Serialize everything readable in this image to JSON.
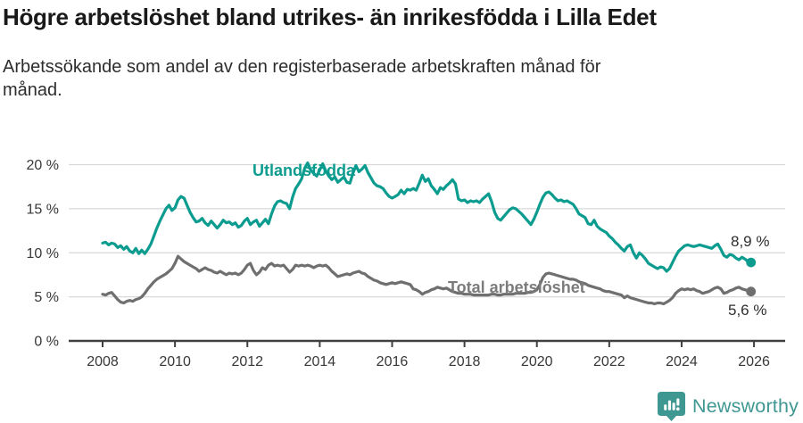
{
  "header": {
    "title": "Högre arbetslöshet bland utrikes- än inrikesfödda i Lilla Edet",
    "subtitle": "Arbetssökande som andel av den registerbaserade arbetskraften månad för månad."
  },
  "footer": {
    "brand": "Newsworthy"
  },
  "colors": {
    "utlandsfodda_line": "#0c9c8f",
    "total_line": "#6f6f6f",
    "grid": "#d9d9d9",
    "axis": "#404040",
    "tick_text": "#383838",
    "brand_teal": "#3f9792"
  },
  "chart_data": {
    "type": "line",
    "title": "Högre arbetslöshet bland utrikes- än inrikesfödda i Lilla Edet",
    "subtitle": "Arbetssökande som andel av den registerbaserade arbetskraften månad för månad.",
    "grid": "horizontal",
    "legend_position": "inline-labels",
    "x_axis": {
      "unit": "year-monthly",
      "start_year": 2008,
      "tick_years": [
        2008,
        2010,
        2012,
        2014,
        2016,
        2018,
        2020,
        2022,
        2024,
        2026
      ],
      "range": [
        2007.1,
        2026.9
      ]
    },
    "y_axis": {
      "ticks": [
        0,
        5,
        10,
        15,
        20
      ],
      "tick_suffix": " %",
      "range": [
        0,
        21
      ]
    },
    "series": [
      {
        "name": "Utlandsfödda",
        "key": "utlandsfodda",
        "color": "#0c9c8f",
        "end_label": "8,9 %",
        "last_value": 8.9,
        "start_year": 2008,
        "points_per_year": 12,
        "values": [
          11.1,
          11.2,
          10.9,
          11.1,
          11.0,
          10.6,
          10.8,
          10.4,
          10.7,
          10.2,
          10.0,
          10.5,
          9.9,
          10.3,
          9.9,
          10.4,
          11.0,
          11.9,
          12.8,
          13.6,
          14.3,
          15.0,
          15.4,
          14.8,
          15.1,
          16.0,
          16.4,
          16.2,
          15.4,
          14.6,
          14.0,
          13.5,
          13.6,
          13.9,
          13.4,
          13.1,
          13.6,
          13.2,
          12.8,
          13.2,
          13.7,
          13.4,
          13.5,
          13.2,
          13.4,
          12.9,
          13.1,
          13.6,
          13.9,
          13.2,
          13.5,
          13.7,
          13.0,
          13.4,
          13.8,
          13.3,
          14.4,
          15.3,
          15.8,
          15.9,
          15.7,
          15.6,
          15.0,
          16.3,
          17.3,
          17.8,
          18.4,
          19.6,
          20.2,
          19.4,
          19.0,
          18.7,
          19.4,
          20.1,
          19.3,
          18.7,
          18.3,
          18.6,
          18.0,
          18.3,
          18.6,
          18.0,
          17.9,
          19.0,
          19.9,
          19.2,
          19.5,
          19.9,
          19.1,
          18.5,
          17.9,
          17.6,
          17.5,
          17.3,
          16.8,
          16.4,
          16.2,
          16.4,
          16.6,
          17.1,
          16.7,
          17.2,
          17.1,
          17.3,
          17.1,
          17.9,
          18.8,
          18.1,
          18.4,
          17.6,
          17.2,
          16.7,
          17.4,
          17.2,
          17.6,
          17.9,
          18.3,
          17.8,
          16.1,
          15.9,
          16.0,
          15.7,
          15.9,
          15.8,
          15.9,
          15.7,
          16.1,
          16.4,
          16.7,
          15.8,
          14.6,
          13.9,
          13.7,
          14.1,
          14.5,
          14.9,
          15.1,
          15.0,
          14.7,
          14.4,
          14.0,
          13.6,
          13.2,
          13.8,
          14.6,
          15.5,
          16.3,
          16.8,
          16.9,
          16.6,
          16.2,
          15.9,
          16.0,
          15.8,
          15.9,
          15.7,
          15.5,
          15.0,
          14.4,
          14.2,
          14.0,
          13.3,
          13.2,
          13.7,
          13.0,
          12.7,
          12.5,
          12.3,
          11.9,
          11.6,
          11.2,
          10.9,
          10.5,
          10.2,
          10.7,
          10.9,
          10.0,
          9.4,
          10.0,
          9.7,
          9.3,
          8.8,
          8.6,
          8.4,
          8.2,
          8.4,
          8.3,
          7.9,
          8.2,
          8.9,
          9.6,
          10.2,
          10.5,
          10.8,
          10.9,
          10.8,
          10.7,
          10.8,
          10.9,
          10.8,
          10.7,
          10.6,
          10.5,
          10.8,
          11.0,
          10.4,
          9.7,
          9.5,
          9.8,
          9.7,
          9.4,
          9.2,
          9.5,
          9.3,
          9.0,
          8.9
        ]
      },
      {
        "name": "Total arbetslöshet",
        "key": "total",
        "color": "#6f6f6f",
        "end_label": "5,6 %",
        "last_value": 5.6,
        "start_year": 2008,
        "points_per_year": 12,
        "values": [
          5.3,
          5.2,
          5.4,
          5.5,
          5.1,
          4.7,
          4.4,
          4.3,
          4.5,
          4.6,
          4.5,
          4.7,
          4.8,
          5.0,
          5.4,
          5.9,
          6.3,
          6.7,
          7.0,
          7.2,
          7.4,
          7.6,
          7.9,
          8.2,
          8.8,
          9.6,
          9.3,
          9.0,
          8.8,
          8.6,
          8.4,
          8.2,
          7.9,
          8.1,
          8.3,
          8.1,
          8.0,
          7.8,
          7.7,
          7.9,
          7.7,
          7.5,
          7.7,
          7.6,
          7.7,
          7.5,
          7.7,
          8.1,
          8.6,
          8.8,
          8.0,
          7.5,
          7.8,
          8.3,
          8.1,
          8.6,
          8.8,
          8.5,
          8.6,
          8.5,
          8.6,
          8.2,
          7.8,
          8.1,
          8.6,
          8.5,
          8.6,
          8.5,
          8.6,
          8.5,
          8.3,
          8.5,
          8.6,
          8.5,
          8.6,
          8.3,
          7.9,
          7.6,
          7.3,
          7.4,
          7.5,
          7.6,
          7.5,
          7.7,
          7.8,
          7.9,
          7.7,
          7.6,
          7.3,
          7.1,
          6.9,
          6.8,
          6.6,
          6.5,
          6.4,
          6.5,
          6.6,
          6.5,
          6.6,
          6.7,
          6.6,
          6.5,
          6.4,
          5.9,
          5.8,
          5.6,
          5.3,
          5.5,
          5.6,
          5.8,
          5.9,
          6.1,
          6.0,
          5.9,
          6.0,
          5.8,
          5.6,
          5.5,
          5.4,
          5.4,
          5.3,
          5.3,
          5.3,
          5.2,
          5.2,
          5.2,
          5.2,
          5.2,
          5.2,
          5.3,
          5.3,
          5.2,
          5.2,
          5.3,
          5.3,
          5.3,
          5.3,
          5.4,
          5.4,
          5.4,
          5.4,
          5.5,
          5.5,
          5.6,
          5.8,
          6.4,
          7.2,
          7.6,
          7.7,
          7.6,
          7.5,
          7.4,
          7.3,
          7.2,
          7.1,
          7.0,
          7.0,
          6.9,
          6.7,
          6.6,
          6.5,
          6.3,
          6.2,
          6.1,
          6.0,
          5.9,
          5.7,
          5.6,
          5.6,
          5.5,
          5.4,
          5.3,
          5.2,
          4.9,
          5.1,
          4.9,
          4.8,
          4.7,
          4.6,
          4.5,
          4.4,
          4.3,
          4.3,
          4.2,
          4.3,
          4.3,
          4.2,
          4.4,
          4.6,
          4.9,
          5.4,
          5.7,
          5.9,
          5.8,
          5.9,
          5.8,
          5.9,
          5.7,
          5.6,
          5.4,
          5.5,
          5.6,
          5.8,
          6.0,
          6.1,
          5.9,
          5.4,
          5.5,
          5.7,
          5.8,
          6.0,
          6.1,
          5.9,
          5.8,
          5.7,
          5.6
        ]
      }
    ]
  }
}
